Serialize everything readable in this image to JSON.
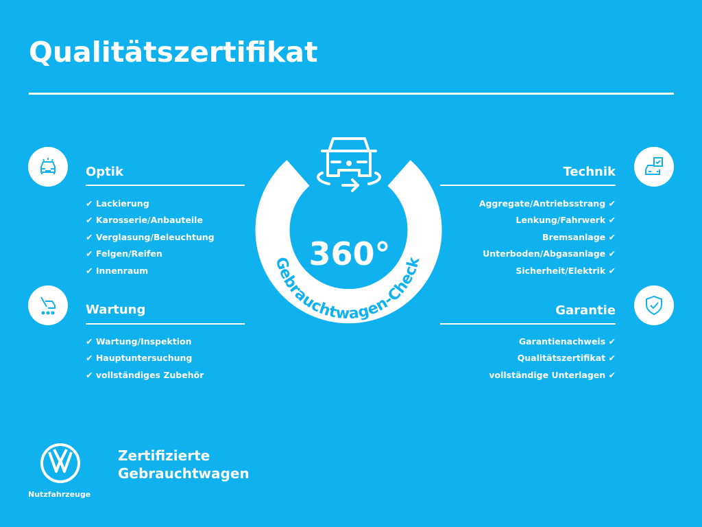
{
  "title": "Qualitätszertifikat",
  "colors": {
    "background": "#0fb1ef",
    "foreground": "#ffffff"
  },
  "center": {
    "degrees": "360°",
    "ring_text": "Gebrauchtwagen-Check",
    "icon": "car-rotate-icon"
  },
  "sections": {
    "optik": {
      "title": "Optik",
      "icon": "car-front-lights-icon",
      "items": [
        "Lackierung",
        "Karosserie/Anbauteile",
        "Verglasung/Beleuchtung",
        "Felgen/Reifen",
        "Innenraum"
      ]
    },
    "wartung": {
      "title": "Wartung",
      "icon": "car-service-icon",
      "items": [
        "Wartung/Inspektion",
        "Hauptuntersuchung",
        "vollständiges Zubehör"
      ]
    },
    "technik": {
      "title": "Technik",
      "icon": "car-checklist-icon",
      "items": [
        "Aggregate/Antriebsstrang",
        "Lenkung/Fahrwerk",
        "Bremsanlage",
        "Unterboden/Abgasanlage",
        "Sicherheit/Elektrik"
      ]
    },
    "garantie": {
      "title": "Garantie",
      "icon": "shield-check-icon",
      "items": [
        "Garantienachweis",
        "Qualitätszertifikat",
        "vollständige Unterlagen"
      ]
    }
  },
  "check_mark": "✔",
  "footer": {
    "line1": "Zertifizierte",
    "line2": "Gebrauchtwagen",
    "brand": "Nutzfahrzeuge",
    "logo": "VW"
  }
}
